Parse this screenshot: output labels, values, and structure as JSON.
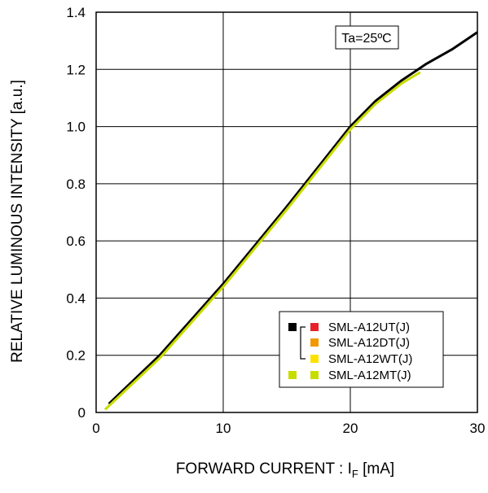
{
  "chart_data": {
    "type": "line",
    "xlabel": "FORWARD CURRENT : I",
    "xlabel_subscript": "F",
    "xlabel_unit": " [mA]",
    "ylabel": "RELATIVE LUMINOUS INTENSITY [a.u.]",
    "xlim": [
      0,
      30
    ],
    "ylim": [
      0,
      1.4
    ],
    "xticks": [
      "0",
      "10",
      "20",
      "30"
    ],
    "yticks": [
      "0",
      "0.2",
      "0.4",
      "0.6",
      "0.8",
      "1.0",
      "1.2",
      "1.4"
    ],
    "grid": true,
    "annotation": "Ta=25ºC",
    "legend_position": "bottom-right",
    "legend": {
      "groups": [
        {
          "marker_color": "#000000",
          "entries": [
            {
              "name": "SML-A12UT(J)",
              "color": "#e8202a"
            },
            {
              "name": "SML-A12DT(J)",
              "color": "#f39800"
            },
            {
              "name": "SML-A12WT(J)",
              "color": "#ffe100"
            }
          ]
        },
        {
          "marker_color": "#c8dc00",
          "entries": [
            {
              "name": "SML-A12MT(J)",
              "color": "#c8dc00"
            }
          ]
        }
      ]
    },
    "series": [
      {
        "color": "#000000",
        "x": [
          1,
          5,
          10,
          15,
          20,
          22,
          24,
          26,
          28,
          30
        ],
        "y": [
          0.03,
          0.2,
          0.45,
          0.72,
          1.0,
          1.09,
          1.16,
          1.22,
          1.27,
          1.33
        ]
      },
      {
        "color": "#c8dc00",
        "x": [
          0.7,
          5,
          10,
          15,
          20,
          22,
          24,
          25.5
        ],
        "y": [
          0.01,
          0.19,
          0.44,
          0.71,
          0.99,
          1.08,
          1.15,
          1.19
        ]
      }
    ]
  }
}
